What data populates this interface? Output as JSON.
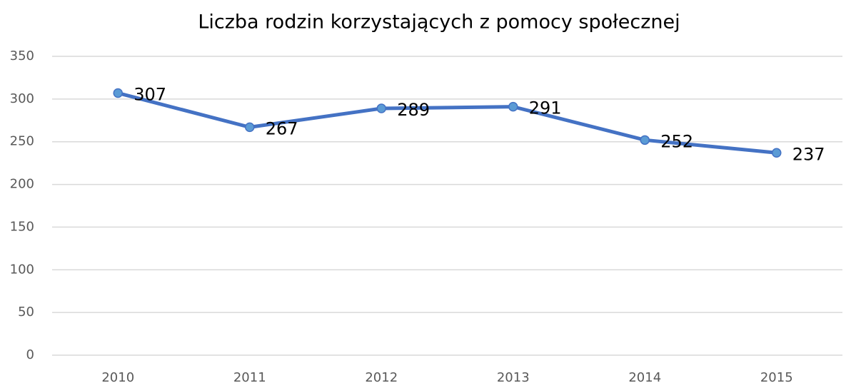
{
  "chart_data": {
    "type": "line",
    "title": "Liczba rodzin korzystających z pomocy społecznej",
    "categories": [
      "2010",
      "2011",
      "2012",
      "2013",
      "2014",
      "2015"
    ],
    "series": [
      {
        "name": "Liczba rodzin",
        "color": "#4472c4",
        "values": [
          307,
          267,
          289,
          291,
          252,
          237
        ]
      }
    ],
    "ylim": [
      0,
      350
    ],
    "yticks": [
      0,
      50,
      100,
      150,
      200,
      250,
      300,
      350
    ],
    "grid": true
  }
}
